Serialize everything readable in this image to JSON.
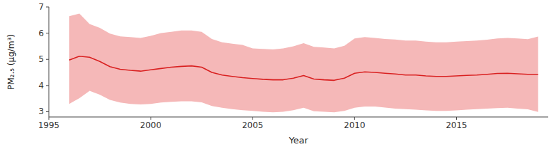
{
  "chart_data": {
    "type": "line",
    "xlabel": "Year",
    "ylabel": "PM₂.₅ (μg/m³)",
    "x": [
      1996,
      1996.5,
      1997,
      1997.5,
      1998,
      1998.5,
      1999,
      1999.5,
      2000,
      2000.5,
      2001,
      2001.5,
      2002,
      2002.5,
      2003,
      2003.5,
      2004,
      2004.5,
      2005,
      2005.5,
      2006,
      2006.5,
      2007,
      2007.5,
      2008,
      2008.5,
      2009,
      2009.5,
      2010,
      2010.5,
      2011,
      2011.5,
      2012,
      2012.5,
      2013,
      2013.5,
      2014,
      2014.5,
      2015,
      2015.5,
      2016,
      2016.5,
      2017,
      2017.5,
      2018,
      2018.5,
      2019
    ],
    "series": [
      {
        "type": "area",
        "color": "#f5b8b8",
        "lower": [
          3.3,
          3.52,
          3.8,
          3.65,
          3.45,
          3.35,
          3.3,
          3.28,
          3.3,
          3.35,
          3.38,
          3.4,
          3.4,
          3.36,
          3.22,
          3.15,
          3.1,
          3.06,
          3.03,
          3.0,
          2.98,
          3.0,
          3.06,
          3.15,
          3.02,
          3.0,
          2.98,
          3.03,
          3.15,
          3.2,
          3.2,
          3.16,
          3.12,
          3.1,
          3.08,
          3.05,
          3.03,
          3.03,
          3.05,
          3.08,
          3.1,
          3.12,
          3.14,
          3.15,
          3.12,
          3.09,
          2.99
        ],
        "upper": [
          6.65,
          6.75,
          6.35,
          6.2,
          5.98,
          5.88,
          5.85,
          5.82,
          5.9,
          6.0,
          6.05,
          6.1,
          6.1,
          6.05,
          5.78,
          5.65,
          5.6,
          5.55,
          5.42,
          5.4,
          5.38,
          5.42,
          5.5,
          5.62,
          5.48,
          5.45,
          5.42,
          5.52,
          5.8,
          5.85,
          5.82,
          5.78,
          5.76,
          5.72,
          5.72,
          5.68,
          5.65,
          5.65,
          5.68,
          5.7,
          5.72,
          5.75,
          5.8,
          5.82,
          5.8,
          5.77,
          5.87
        ]
      },
      {
        "type": "line",
        "color": "#d92020",
        "values": [
          4.97,
          5.12,
          5.08,
          4.92,
          4.72,
          4.62,
          4.58,
          4.55,
          4.6,
          4.65,
          4.7,
          4.73,
          4.75,
          4.7,
          4.5,
          4.4,
          4.35,
          4.3,
          4.27,
          4.24,
          4.22,
          4.22,
          4.28,
          4.38,
          4.25,
          4.22,
          4.2,
          4.28,
          4.47,
          4.52,
          4.5,
          4.47,
          4.44,
          4.4,
          4.4,
          4.37,
          4.35,
          4.35,
          4.37,
          4.39,
          4.4,
          4.43,
          4.46,
          4.47,
          4.45,
          4.43,
          4.43
        ]
      }
    ],
    "xlim": [
      1995,
      2019.5
    ],
    "ylim": [
      2.8,
      7.0
    ],
    "xticks": [
      1995,
      2000,
      2005,
      2010,
      2015
    ],
    "yticks": [
      3,
      4,
      5,
      6,
      7
    ],
    "grid": false
  }
}
